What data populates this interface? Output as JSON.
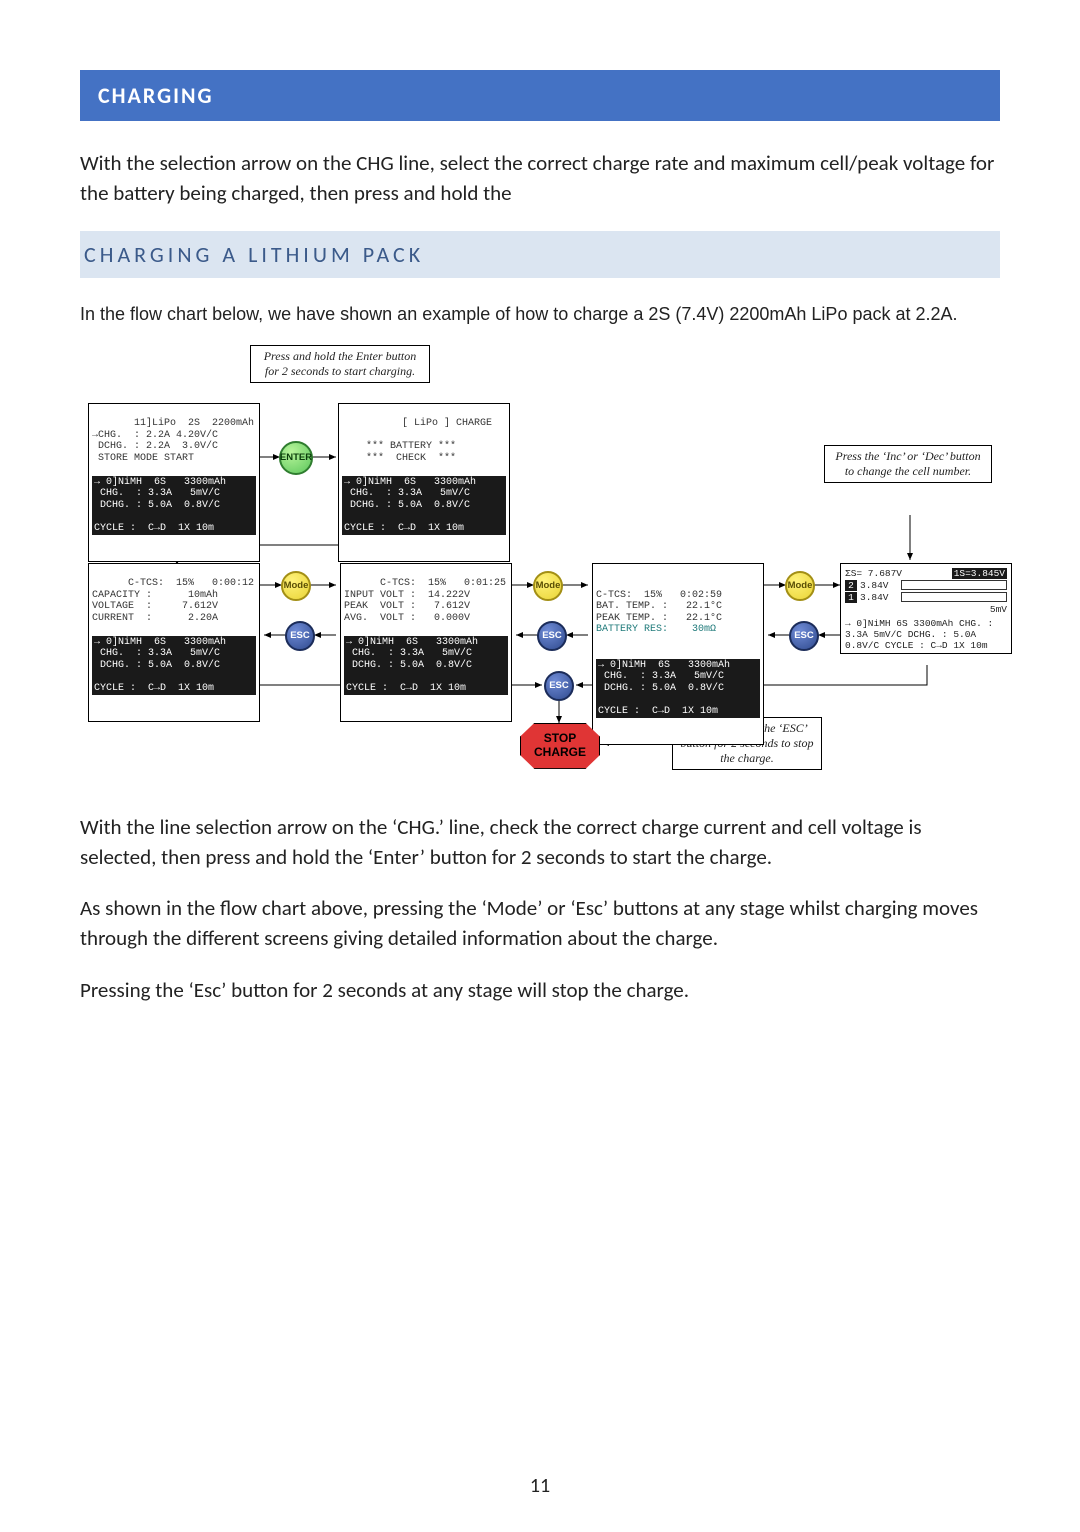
{
  "heading": "CHARGING",
  "intro_paragraph": "With the selection arrow on the CHG line, select the correct charge rate and maximum cell/peak voltage for the battery being charged, then press and hold the",
  "subheading": "CHARGING A LITHIUM PACK",
  "lead_paragraph": "In the flow chart below, we have shown an example of how to charge a 2S (7.4V) 2200mAh LiPo pack at 2.2A.",
  "after1": "With the line selection arrow on the ‘CHG.’ line, check the correct charge current and cell voltage is selected, then press and hold the ‘Enter’ button for 2 seconds to start the charge.",
  "after2": "As shown in the flow chart above, pressing the ‘Mode’ or ‘Esc’ buttons at any stage whilst charging moves through the different screens giving detailed information about the charge.",
  "after3": "Pressing the ‘Esc’ button for 2 seconds at any stage will stop the charge.",
  "page_number": "11",
  "colors": {
    "heading_bg": "#4472c4",
    "subheading_bg": "#dbe5f1",
    "subheading_fg": "#3b5a8a",
    "enter_btn": "#5cc65c",
    "mode_btn": "#e9d436",
    "esc_btn": "#2f4a8e",
    "stop_bg": "#e03535",
    "lcd_inv_bg": "#1a1a1a",
    "teal_text": "#1f7a7a"
  },
  "notes": {
    "enter_note": "Press and hold the Enter button for 2 seconds to start charging.",
    "inc_dec_note": "Press the ‘Inc’ or ‘Dec’ button to change the cell number.",
    "stop_note": "Press and hold the ‘ESC’ button for 2 seconds to stop the charge."
  },
  "buttons": {
    "enter": "ENTER",
    "mode": "Mode",
    "esc": "ESC"
  },
  "stop": {
    "line1": "STOP",
    "line2": "CHARGE"
  },
  "lcd": {
    "menu": {
      "top": " 11]LiPo  2S  2200mAh\n→CHG.  : 2.2A 4.20V/C\n DCHG. : 2.2A  3.0V/C\n STORE MODE START",
      "inv": "→ 0]NiMH  6S   3300mAh\n CHG.  : 3.3A   5mV/C\n DCHG. : 5.0A  0.8V/C\n\nCYCLE :  C→D  1X 10m"
    },
    "check": {
      "top": "    [ LiPo ] CHARGE\n\n    *** BATTERY ***\n    ***  CHECK  ***",
      "inv": "→ 0]NiMH  6S   3300mAh\n CHG.  : 3.3A   5mV/C\n DCHG. : 5.0A  0.8V/C\n\nCYCLE :  C→D  1X 10m"
    },
    "row2a": {
      "top": "C-TCS:  15%   0:00:12\nCAPACITY :      10mAh\nVOLTAGE  :     7.612V\nCURRENT  :      2.20A",
      "inv": "→ 0]NiMH  6S   3300mAh\n CHG.  : 3.3A   5mV/C\n DCHG. : 5.0A  0.8V/C\n\nCYCLE :  C→D  1X 10m"
    },
    "row2b": {
      "top": "C-TCS:  15%   0:01:25\nINPUT VOLT :  14.222V\nPEAK  VOLT :   7.612V\nAVG.  VOLT :   0.000V",
      "inv": "→ 0]NiMH  6S   3300mAh\n CHG.  : 3.3A   5mV/C\n DCHG. : 5.0A  0.8V/C\n\nCYCLE :  C→D  1X 10m"
    },
    "row2c": {
      "top": "C-TCS:  15%   0:02:59\nBAT. TEMP. :   22.1°C\nPEAK TEMP. :   22.1°C\nBATTERY RES:    30mΩ",
      "teal_last": true,
      "inv": "→ 0]NiMH  6S   3300mAh\n CHG.  : 3.3A   5mV/C\n DCHG. : 5.0A  0.8V/C\n\nCYCLE :  C→D  1X 10m"
    },
    "cells": {
      "sum": "ΣS= 7.687V",
      "sel": "1S=3.845V",
      "rows": [
        {
          "n": "2",
          "v": "3.84V"
        },
        {
          "n": "1",
          "v": "3.84V"
        }
      ],
      "mv": "5mV",
      "inv": "→ 0]NiMH  6S   3300mAh\n CHG.  : 3.3A   5mV/C\n DCHG. : 5.0A  0.8V/C\n\nCYCLE :  C→D  1X 10m"
    }
  }
}
